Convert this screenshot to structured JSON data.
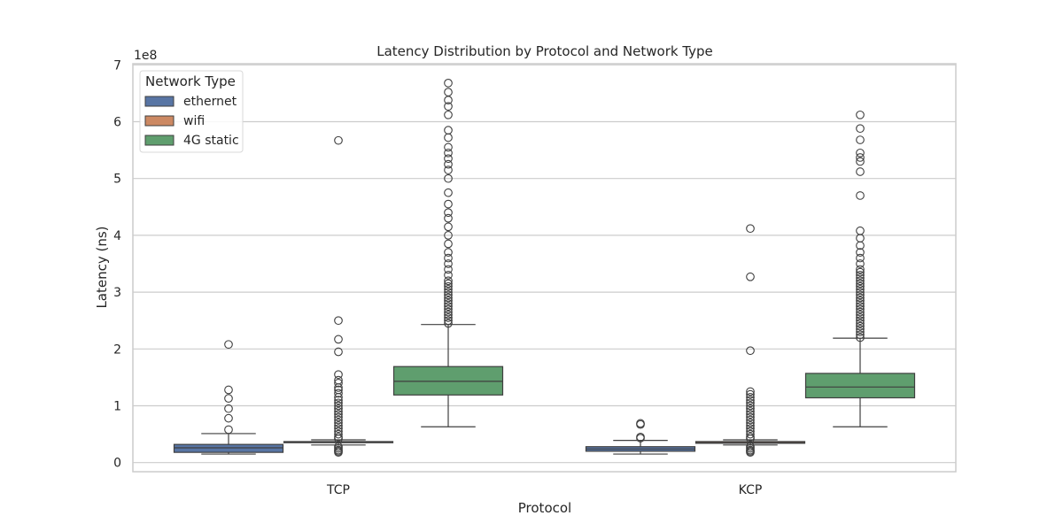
{
  "chart_data": {
    "type": "box",
    "title": "Latency Distribution by Protocol and Network Type",
    "xlabel": "Protocol",
    "ylabel": "Latency (ns)",
    "y_multiplier_label": "1e8",
    "ylim": [
      -1.8,
      7.0
    ],
    "y_ticks": [
      0,
      1,
      2,
      3,
      4,
      5,
      6,
      7
    ],
    "grid": true,
    "legend": {
      "title": "Network Type",
      "placement": "top-left"
    },
    "categories": [
      "TCP",
      "KCP"
    ],
    "series": [
      {
        "name": "ethernet",
        "color": "#5875a4",
        "boxes": [
          {
            "whisker_low": 0.15,
            "q1": 0.18,
            "median": 0.26,
            "q3": 0.32,
            "whisker_high": 0.51,
            "outliers": [
              0.58,
              0.78,
              0.95,
              1.13,
              1.28,
              2.08
            ]
          },
          {
            "whisker_low": 0.15,
            "q1": 0.2,
            "median": 0.24,
            "q3": 0.28,
            "whisker_high": 0.39,
            "outliers": [
              0.43,
              0.45,
              0.67,
              0.69
            ]
          }
        ]
      },
      {
        "name": "wifi",
        "color": "#cc8963",
        "boxes": [
          {
            "whisker_low": 0.31,
            "q1": 0.35,
            "median": 0.36,
            "q3": 0.37,
            "whisker_high": 0.4,
            "outliers": [
              0.18,
              0.2,
              0.22,
              0.25,
              0.28,
              0.42,
              0.45,
              0.5,
              0.55,
              0.6,
              0.65,
              0.7,
              0.75,
              0.8,
              0.85,
              0.9,
              0.95,
              1.0,
              1.05,
              1.1,
              1.15,
              1.22,
              1.28,
              1.32,
              1.4,
              1.45,
              1.55,
              1.95,
              2.17,
              2.5,
              5.67
            ]
          },
          {
            "whisker_low": 0.31,
            "q1": 0.34,
            "median": 0.35,
            "q3": 0.37,
            "whisker_high": 0.4,
            "outliers": [
              0.18,
              0.2,
              0.22,
              0.25,
              0.28,
              0.42,
              0.45,
              0.5,
              0.55,
              0.6,
              0.65,
              0.7,
              0.75,
              0.8,
              0.85,
              0.9,
              0.95,
              1.0,
              1.05,
              1.1,
              1.15,
              1.2,
              1.25,
              1.97,
              3.27,
              4.12
            ]
          }
        ]
      },
      {
        "name": "4G static",
        "color": "#5f9e6e",
        "boxes": [
          {
            "whisker_low": 0.63,
            "q1": 1.19,
            "median": 1.43,
            "q3": 1.69,
            "whisker_high": 2.43,
            "outliers": [
              2.45,
              2.5,
              2.55,
              2.6,
              2.65,
              2.7,
              2.75,
              2.8,
              2.85,
              2.9,
              2.95,
              3.0,
              3.05,
              3.1,
              3.15,
              3.2,
              3.3,
              3.4,
              3.5,
              3.6,
              3.7,
              3.85,
              4.0,
              4.15,
              4.3,
              4.4,
              4.55,
              4.75,
              5.0,
              5.15,
              5.25,
              5.35,
              5.45,
              5.55,
              5.72,
              5.85,
              6.12,
              6.27,
              6.38,
              6.52,
              6.68
            ]
          },
          {
            "whisker_low": 0.63,
            "q1": 1.14,
            "median": 1.33,
            "q3": 1.57,
            "whisker_high": 2.19,
            "outliers": [
              2.2,
              2.25,
              2.3,
              2.35,
              2.4,
              2.45,
              2.5,
              2.55,
              2.6,
              2.65,
              2.7,
              2.75,
              2.8,
              2.85,
              2.9,
              2.95,
              3.0,
              3.05,
              3.1,
              3.15,
              3.2,
              3.25,
              3.3,
              3.35,
              3.4,
              3.5,
              3.6,
              3.7,
              3.82,
              3.95,
              4.08,
              4.7,
              5.12,
              5.3,
              5.37,
              5.45,
              5.68,
              5.88,
              6.12
            ]
          }
        ]
      }
    ]
  }
}
